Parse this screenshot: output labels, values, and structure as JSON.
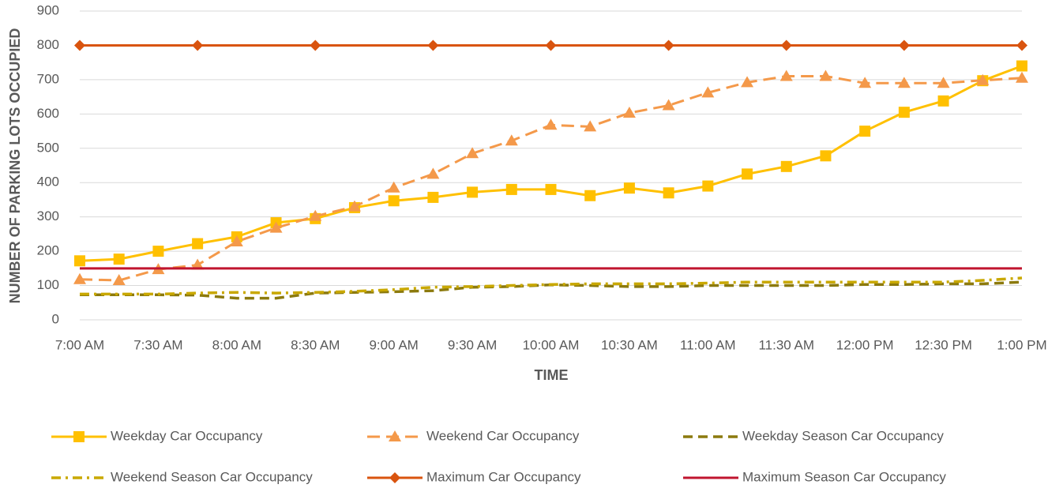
{
  "chart_data": {
    "type": "line",
    "xlabel": "TIME",
    "ylabel": "NUMBER OF PARKING LOTS OCCUPIED",
    "categories": [
      "7:00 AM",
      null,
      "7:30 AM",
      null,
      "8:00 AM",
      null,
      "8:30 AM",
      null,
      "9:00 AM",
      null,
      "9:30 AM",
      null,
      "10:00 AM",
      null,
      "10:30 AM",
      null,
      "11:00 AM",
      null,
      "11:30 AM",
      null,
      "12:00 PM",
      null,
      "12:30 PM",
      null,
      "1:00 PM"
    ],
    "ylim": [
      0,
      900
    ],
    "yticks": [
      0,
      100,
      200,
      300,
      400,
      500,
      600,
      700,
      800,
      900
    ],
    "grid": true,
    "legend": "bottom",
    "series": [
      {
        "name": "Weekday Car Occupancy",
        "color": "#ffc000",
        "marker": "square",
        "dash": "none",
        "width": 3,
        "values": [
          172,
          177,
          200,
          222,
          242,
          283,
          295,
          327,
          347,
          357,
          372,
          380,
          380,
          362,
          384,
          370,
          390,
          425,
          447,
          478,
          550,
          605,
          638,
          697,
          740
        ]
      },
      {
        "name": "Weekend Car Occupancy",
        "color": "#f4994a",
        "marker": "triangle",
        "dash": "16 8",
        "width": 3,
        "values": [
          118,
          115,
          147,
          160,
          228,
          268,
          302,
          330,
          385,
          425,
          485,
          522,
          568,
          563,
          603,
          625,
          662,
          692,
          710,
          710,
          690,
          690,
          690,
          698,
          705
        ]
      },
      {
        "name": "Weekday Season Car Occupancy",
        "color": "#8c7a0e",
        "marker": "none",
        "dash": "12 7",
        "width": 3.5,
        "values": [
          73,
          73,
          73,
          72,
          63,
          63,
          78,
          80,
          82,
          85,
          95,
          97,
          102,
          100,
          97,
          97,
          100,
          100,
          100,
          100,
          103,
          103,
          105,
          105,
          110
        ]
      },
      {
        "name": "Weekend Season Car Occupancy",
        "color": "#c9a800",
        "marker": "none",
        "dash": "12 6 3 6",
        "width": 3.5,
        "values": [
          75,
          75,
          75,
          78,
          80,
          78,
          80,
          83,
          88,
          95,
          97,
          100,
          103,
          105,
          105,
          105,
          107,
          110,
          110,
          110,
          110,
          110,
          110,
          115,
          122
        ]
      },
      {
        "name": "Maximum Car Occupancy",
        "color": "#d9540f",
        "marker": "diamond",
        "marker_every": 3,
        "dash": "none",
        "width": 3,
        "values": [
          800,
          800,
          800,
          800,
          800,
          800,
          800,
          800,
          800,
          800,
          800,
          800,
          800,
          800,
          800,
          800,
          800,
          800,
          800,
          800,
          800,
          800,
          800,
          800,
          800
        ]
      },
      {
        "name": "Maximum Season Car Occupancy",
        "color": "#c0152f",
        "marker": "none",
        "dash": "none",
        "width": 3,
        "values": [
          150,
          150,
          150,
          150,
          150,
          150,
          150,
          150,
          150,
          150,
          150,
          150,
          150,
          150,
          150,
          150,
          150,
          150,
          150,
          150,
          150,
          150,
          150,
          150,
          150
        ]
      }
    ]
  }
}
